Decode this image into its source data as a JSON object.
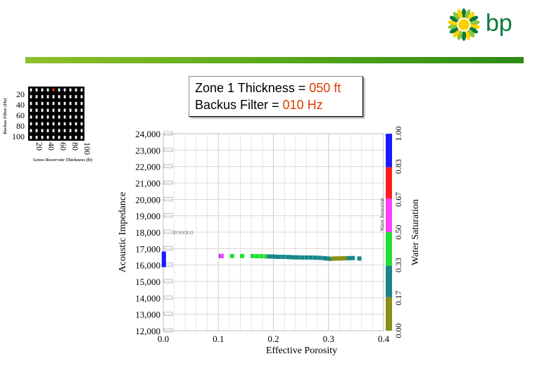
{
  "brand": {
    "logo_text": "bp",
    "logo_icon": "helios-sun-icon",
    "green": "#0a7a3c",
    "yellow": "#ffd200"
  },
  "title": {
    "line1_prefix": "Zone 1 Thickness = ",
    "line1_value": "050 ft",
    "line2_prefix": "Backus Filter = ",
    "line2_value": "010 Hz",
    "highlight_color": "#e03a00"
  },
  "chart_data": [
    {
      "type": "scatter",
      "xlabel": "Effective Porosity",
      "ylabel": "Acoustic Impedance",
      "xlim": [
        0.0,
        0.4
      ],
      "ylim": [
        12000,
        24000
      ],
      "x_ticks": [
        "0.0",
        "0.1",
        "0.2",
        "0.3",
        "0.4"
      ],
      "y_ticks": [
        "12,000",
        "13,000",
        "14,000",
        "15,000",
        "16,000",
        "17,000",
        "18,000",
        "19,000",
        "20,000",
        "21,000",
        "22,000",
        "23,000",
        "24,000"
      ],
      "grid": true,
      "color_by": "Water Saturation",
      "points": [
        {
          "x": 0.001,
          "y": 16700,
          "sw": 0.93
        },
        {
          "x": 0.001,
          "y": 16500,
          "sw": 0.93
        },
        {
          "x": 0.001,
          "y": 16300,
          "sw": 0.93
        },
        {
          "x": 0.001,
          "y": 16100,
          "sw": 0.93
        },
        {
          "x": 0.001,
          "y": 16000,
          "sw": 0.93
        },
        {
          "x": 0.105,
          "y": 16550,
          "sw": 0.93
        },
        {
          "x": 0.106,
          "y": 16550,
          "sw": 0.6
        },
        {
          "x": 0.125,
          "y": 16550,
          "sw": 0.4
        },
        {
          "x": 0.143,
          "y": 16550,
          "sw": 0.4
        },
        {
          "x": 0.162,
          "y": 16550,
          "sw": 0.38
        },
        {
          "x": 0.17,
          "y": 16540,
          "sw": 0.37
        },
        {
          "x": 0.178,
          "y": 16540,
          "sw": 0.36
        },
        {
          "x": 0.186,
          "y": 16530,
          "sw": 0.35
        },
        {
          "x": 0.192,
          "y": 16520,
          "sw": 0.3
        },
        {
          "x": 0.198,
          "y": 16520,
          "sw": 0.3
        },
        {
          "x": 0.204,
          "y": 16510,
          "sw": 0.28
        },
        {
          "x": 0.21,
          "y": 16500,
          "sw": 0.27
        },
        {
          "x": 0.218,
          "y": 16500,
          "sw": 0.26
        },
        {
          "x": 0.226,
          "y": 16490,
          "sw": 0.25
        },
        {
          "x": 0.232,
          "y": 16480,
          "sw": 0.25
        },
        {
          "x": 0.238,
          "y": 16470,
          "sw": 0.25
        },
        {
          "x": 0.244,
          "y": 16470,
          "sw": 0.26
        },
        {
          "x": 0.252,
          "y": 16460,
          "sw": 0.26
        },
        {
          "x": 0.26,
          "y": 16460,
          "sw": 0.27
        },
        {
          "x": 0.268,
          "y": 16460,
          "sw": 0.27
        },
        {
          "x": 0.276,
          "y": 16450,
          "sw": 0.28
        },
        {
          "x": 0.284,
          "y": 16440,
          "sw": 0.28
        },
        {
          "x": 0.292,
          "y": 16420,
          "sw": 0.28
        },
        {
          "x": 0.298,
          "y": 16400,
          "sw": 0.25
        },
        {
          "x": 0.304,
          "y": 16380,
          "sw": 0.2
        },
        {
          "x": 0.308,
          "y": 16390,
          "sw": 0.1
        },
        {
          "x": 0.312,
          "y": 16400,
          "sw": 0.08
        },
        {
          "x": 0.316,
          "y": 16400,
          "sw": 0.08
        },
        {
          "x": 0.32,
          "y": 16400,
          "sw": 0.08
        },
        {
          "x": 0.324,
          "y": 16410,
          "sw": 0.08
        },
        {
          "x": 0.328,
          "y": 16410,
          "sw": 0.08
        },
        {
          "x": 0.332,
          "y": 16420,
          "sw": 0.08
        },
        {
          "x": 0.337,
          "y": 16420,
          "sw": 0.2
        },
        {
          "x": 0.344,
          "y": 16430,
          "sw": 0.25
        },
        {
          "x": 0.356,
          "y": 16400,
          "sw": 0.25
        }
      ],
      "annotation": "EOOOLO",
      "colorbar": {
        "label": "Water Saturation",
        "inner_label": "Water Saturation",
        "ticks": [
          "0.00",
          "0.17",
          "0.33",
          "0.50",
          "0.67",
          "0.83",
          "1.00"
        ],
        "segments": [
          {
            "from": 0.0,
            "to": 0.17,
            "color": "#8b8f14"
          },
          {
            "from": 0.17,
            "to": 0.33,
            "color": "#17878a"
          },
          {
            "from": 0.33,
            "to": 0.5,
            "color": "#22e032"
          },
          {
            "from": 0.5,
            "to": 0.67,
            "color": "#ff40ff"
          },
          {
            "from": 0.67,
            "to": 0.83,
            "color": "#ff1e1e"
          },
          {
            "from": 0.83,
            "to": 1.0,
            "color": "#1a1aff"
          }
        ]
      }
    },
    {
      "type": "heatmap",
      "xlabel": "Gross Reservoir Thickness (ft)",
      "ylabel": "Backus Filter (Hz)",
      "x_ticks": [
        "20",
        "40",
        "60",
        "80",
        "100"
      ],
      "y_ticks": [
        "20",
        "40",
        "60",
        "80",
        "100"
      ],
      "grid_size": [
        10,
        8
      ],
      "selected_cell": {
        "col": 4,
        "row": 0
      },
      "cell_color": "#ffffff",
      "selected_color": "#e03a00",
      "background_color": "#000000"
    }
  ]
}
